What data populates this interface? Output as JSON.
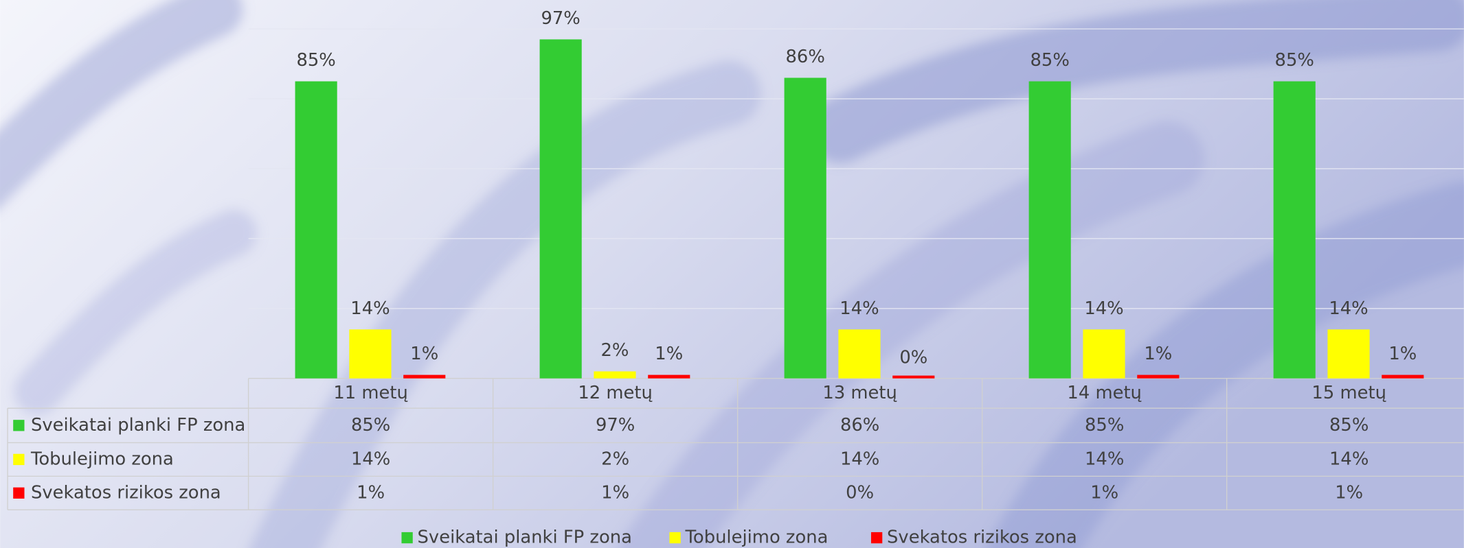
{
  "chart_data": {
    "type": "bar",
    "categories": [
      "11 metų",
      "12 metų",
      "13 metų",
      "14 metų",
      "15 metų"
    ],
    "series": [
      {
        "name": "Sveikatai planki FP zona",
        "color": "#33cc33",
        "values": [
          85,
          97,
          86,
          85,
          85
        ],
        "value_labels": [
          "85%",
          "97%",
          "86%",
          "85%",
          "85%"
        ]
      },
      {
        "name": "Tobulejimo zona",
        "color": "#ffff00",
        "values": [
          14,
          2,
          14,
          14,
          14
        ],
        "value_labels": [
          "14%",
          "2%",
          "14%",
          "14%",
          "14%"
        ]
      },
      {
        "name": "Svekatos rizikos zona",
        "color": "#ff0000",
        "values": [
          1,
          1,
          0,
          1,
          1
        ],
        "value_labels": [
          "1%",
          "1%",
          "0%",
          "1%",
          "1%"
        ]
      }
    ],
    "ylim": [
      0,
      100
    ],
    "yticks": [
      0,
      20,
      40,
      60,
      80,
      100
    ],
    "grid": true
  }
}
